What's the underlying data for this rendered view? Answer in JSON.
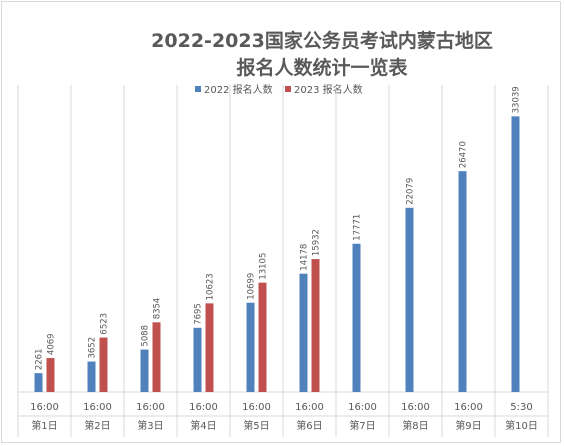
{
  "chart_data": {
    "type": "bar",
    "title_line1": "2022-2023国家公务员考试内蒙古地区",
    "title_line2": "报名人数统计一览表",
    "categories": [
      {
        "time": "16:00",
        "day": "第1日"
      },
      {
        "time": "16:00",
        "day": "第2日"
      },
      {
        "time": "16:00",
        "day": "第3日"
      },
      {
        "time": "16:00",
        "day": "第4日"
      },
      {
        "time": "16:00",
        "day": "第5日"
      },
      {
        "time": "16:00",
        "day": "第6日"
      },
      {
        "time": "16:00",
        "day": "第7日"
      },
      {
        "time": "16:00",
        "day": "第8日"
      },
      {
        "time": "16:00",
        "day": "第9日"
      },
      {
        "time": "5:30",
        "day": "第10日"
      }
    ],
    "series": [
      {
        "name": "2022 报名人数",
        "color": "#4f81bd",
        "values": [
          2261,
          3652,
          5088,
          7695,
          10699,
          14178,
          17771,
          22079,
          26470,
          33039
        ]
      },
      {
        "name": "2023 报名人数",
        "color": "#c0504d",
        "values": [
          4069,
          6523,
          8354,
          10623,
          13105,
          15932,
          null,
          null,
          null,
          null
        ]
      }
    ],
    "legend_position": "top",
    "grid": "vertical category separators",
    "ylim": [
      0,
      35000
    ]
  }
}
